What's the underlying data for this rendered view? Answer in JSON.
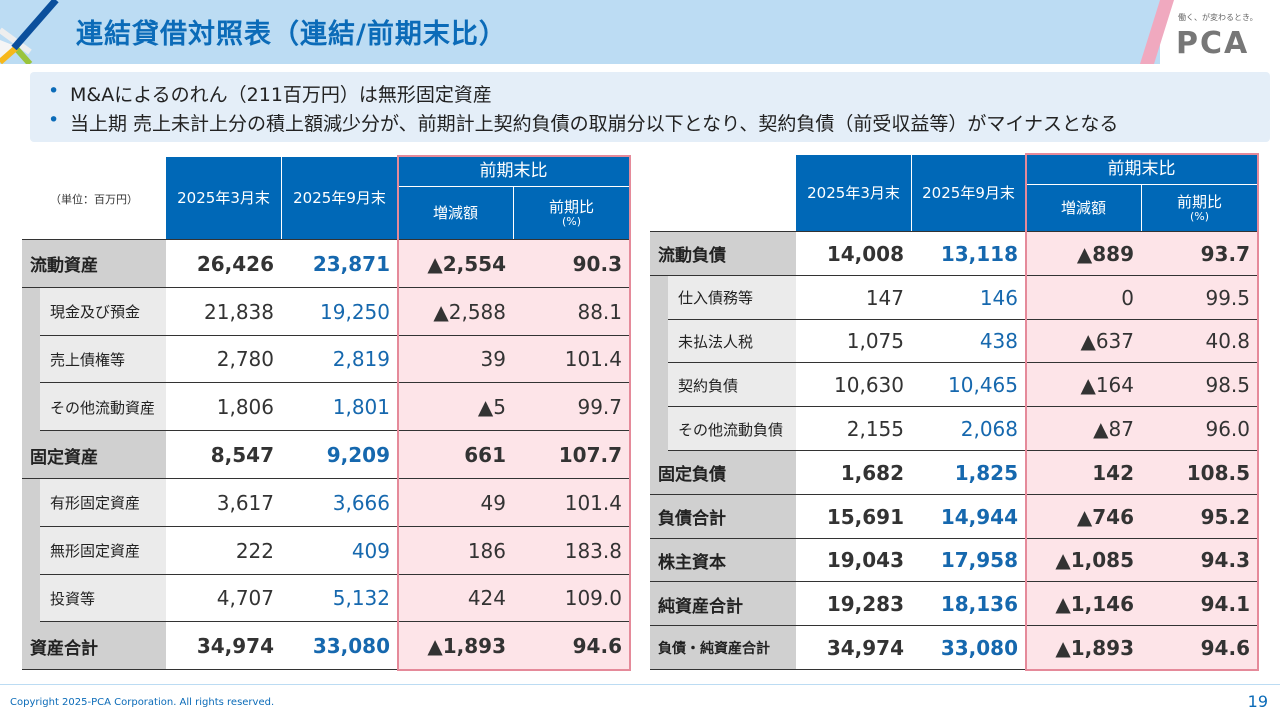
{
  "header": {
    "title": "連結貸借対照表（連結/前期末比）",
    "logo": "PCA",
    "tagline": "働く、が変わるとき。"
  },
  "bullets": [
    "M&Aによるのれん（211百万円）は無形固定資産",
    "当上期 売上未計上分の積上額減少分が、前期計上契約負債の取崩分以下となり、契約負債（前受収益等）がマイナスとなる"
  ],
  "unit": "（単位：百万円）",
  "columns": {
    "mar": "2025年3月末",
    "sep": "2025年9月末",
    "group": "前期末比",
    "diff": "増減額",
    "ratio": "前期比",
    "ratio_unit": "(%)"
  },
  "assets": [
    {
      "label": "流動資産",
      "major": true,
      "v": [
        "26,426",
        "23,871",
        "▲2,554",
        "90.3"
      ]
    },
    {
      "label": "現金及び預金",
      "major": false,
      "v": [
        "21,838",
        "19,250",
        "▲2,588",
        "88.1"
      ]
    },
    {
      "label": "売上債権等",
      "major": false,
      "v": [
        "2,780",
        "2,819",
        "39",
        "101.4"
      ]
    },
    {
      "label": "その他流動資産",
      "major": false,
      "v": [
        "1,806",
        "1,801",
        "▲5",
        "99.7"
      ]
    },
    {
      "label": "固定資産",
      "major": true,
      "v": [
        "8,547",
        "9,209",
        "661",
        "107.7"
      ]
    },
    {
      "label": "有形固定資産",
      "major": false,
      "v": [
        "3,617",
        "3,666",
        "49",
        "101.4"
      ]
    },
    {
      "label": "無形固定資産",
      "major": false,
      "v": [
        "222",
        "409",
        "186",
        "183.8"
      ]
    },
    {
      "label": "投資等",
      "major": false,
      "v": [
        "4,707",
        "5,132",
        "424",
        "109.0"
      ]
    },
    {
      "label": "資産合計",
      "major": true,
      "v": [
        "34,974",
        "33,080",
        "▲1,893",
        "94.6"
      ]
    }
  ],
  "liabilities": [
    {
      "label": "流動負債",
      "major": true,
      "v": [
        "14,008",
        "13,118",
        "▲889",
        "93.7"
      ]
    },
    {
      "label": "仕入債務等",
      "major": false,
      "v": [
        "147",
        "146",
        "0",
        "99.5"
      ]
    },
    {
      "label": "未払法人税",
      "major": false,
      "v": [
        "1,075",
        "438",
        "▲637",
        "40.8"
      ]
    },
    {
      "label": "契約負債",
      "major": false,
      "v": [
        "10,630",
        "10,465",
        "▲164",
        "98.5"
      ]
    },
    {
      "label": "その他流動負債",
      "major": false,
      "v": [
        "2,155",
        "2,068",
        "▲87",
        "96.0"
      ]
    },
    {
      "label": "固定負債",
      "major": true,
      "v": [
        "1,682",
        "1,825",
        "142",
        "108.5"
      ]
    },
    {
      "label": "負債合計",
      "major": true,
      "v": [
        "15,691",
        "14,944",
        "▲746",
        "95.2"
      ]
    },
    {
      "label": "株主資本",
      "major": true,
      "v": [
        "19,043",
        "17,958",
        "▲1,085",
        "94.3"
      ]
    },
    {
      "label": "純資産合計",
      "major": true,
      "v": [
        "19,283",
        "18,136",
        "▲1,146",
        "94.1"
      ]
    },
    {
      "label": "負債・純資産合計",
      "major": true,
      "small": true,
      "v": [
        "34,974",
        "33,080",
        "▲1,893",
        "94.6"
      ]
    }
  ],
  "footer": {
    "copyright": "Copyright 2025-PCA Corporation. All rights reserved.",
    "page": "19"
  },
  "colors": {
    "header_blue": "#0068b7",
    "title_blue": "#0b6bb8",
    "highlight_pink": "#fde4e8",
    "border_pink": "#e58a9a"
  }
}
